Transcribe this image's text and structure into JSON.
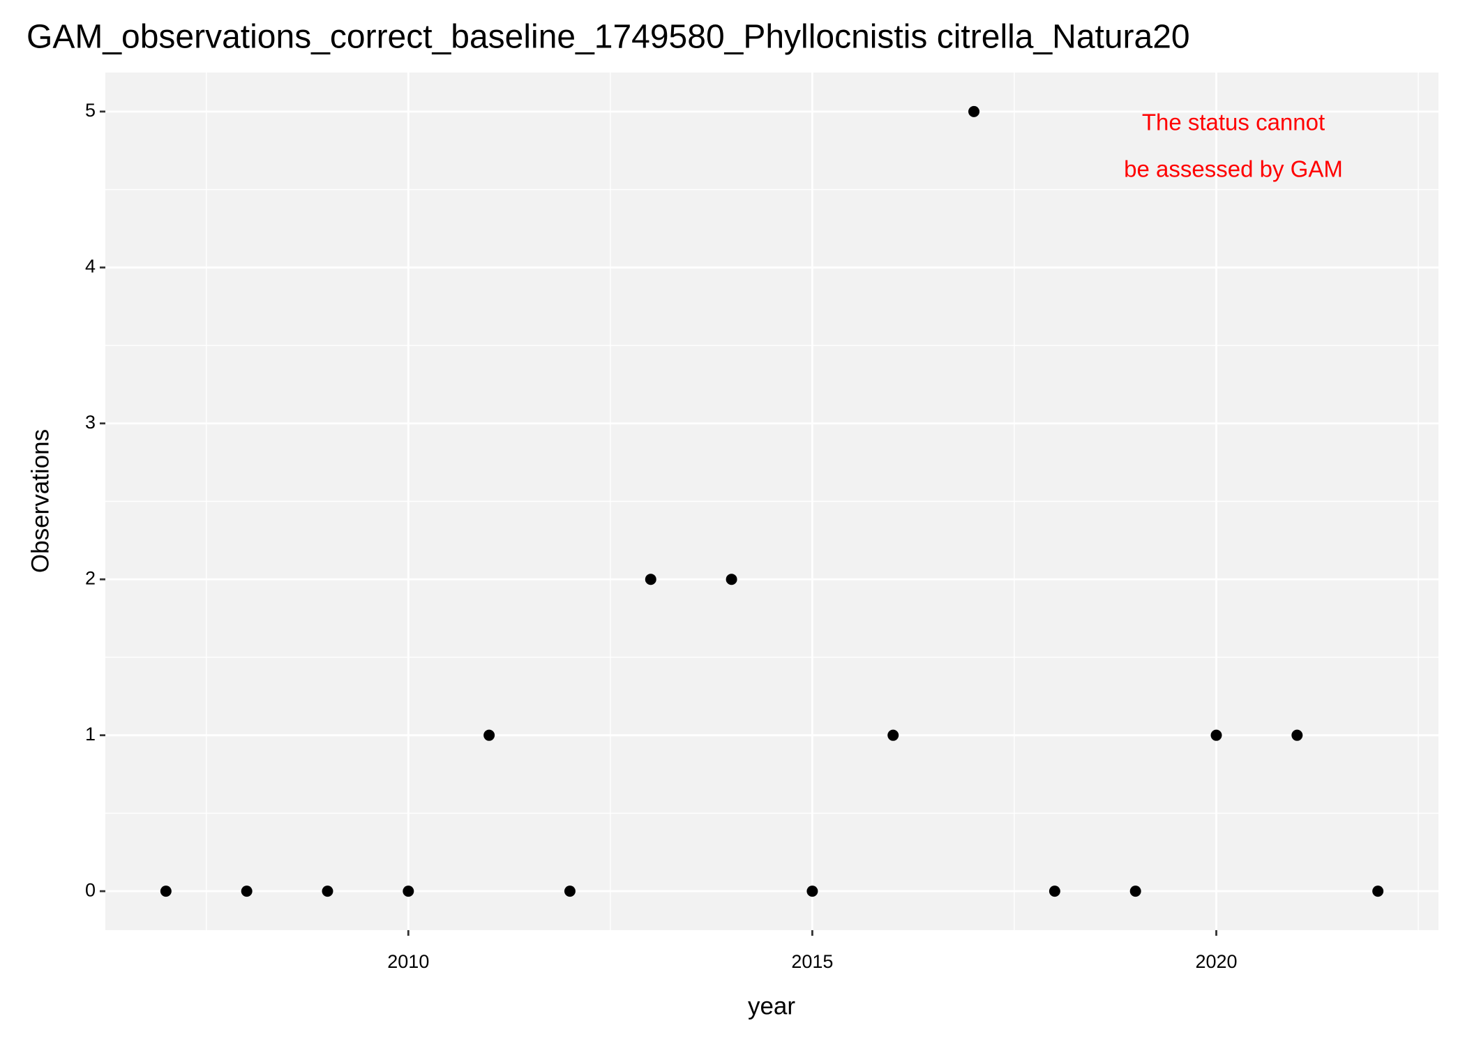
{
  "chart_data": {
    "type": "scatter",
    "title": "GAM_observations_correct_baseline_1749580_Phyllocnistis citrella_Natura20",
    "x_label": "year",
    "y_label": "Observations",
    "x": [
      2007,
      2008,
      2009,
      2010,
      2011,
      2012,
      2013,
      2014,
      2015,
      2016,
      2017,
      2018,
      2019,
      2020,
      2021,
      2022
    ],
    "values": [
      0,
      0,
      0,
      0,
      1,
      0,
      2,
      2,
      0,
      1,
      5,
      0,
      0,
      1,
      1,
      0
    ],
    "color": "#000000",
    "xlim": [
      2006.25,
      2022.75
    ],
    "xticks": [
      2010,
      2015,
      2020
    ],
    "ylim": [
      -0.25,
      5.25
    ],
    "yticks": [
      0,
      1,
      2,
      3,
      4,
      5
    ],
    "grid": true,
    "annotation": [
      "The status cannot",
      "be assessed by GAM"
    ],
    "annotation_color": "#ff0000"
  }
}
